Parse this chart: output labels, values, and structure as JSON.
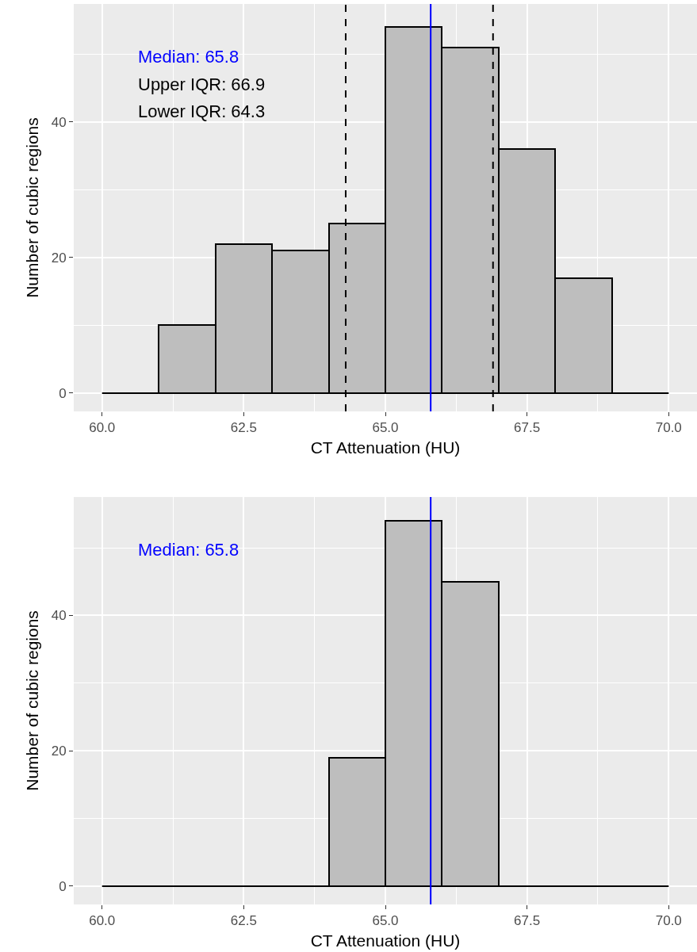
{
  "chart_data": [
    {
      "type": "histogram",
      "xlabel": "CT Attenuation (HU)",
      "ylabel": "Number of cubic regions",
      "bins": [
        60,
        61,
        62,
        63,
        64,
        65,
        66,
        67,
        68,
        69,
        70
      ],
      "values": [
        0,
        10,
        22,
        21,
        25,
        54,
        51,
        36,
        17,
        0
      ],
      "color": "#bebebe",
      "xlim": [
        59.5,
        70.5
      ],
      "ylim": [
        -2.7,
        57.4
      ],
      "xticks": [
        {
          "value": 60,
          "label": "60.0"
        },
        {
          "value": 62.5,
          "label": "62.5"
        },
        {
          "value": 65,
          "label": "65.0"
        },
        {
          "value": 67.5,
          "label": "67.5"
        },
        {
          "value": 70,
          "label": "70.0"
        }
      ],
      "yticks": [
        0,
        20,
        40
      ],
      "grid": true,
      "ref_lines": [
        {
          "axis": "x",
          "value": 65.8,
          "label": "Median: 65.8",
          "color": "#0000ff",
          "line_style": "solid"
        },
        {
          "axis": "x",
          "value": 66.9,
          "color": "#000000",
          "line_style": "dashed"
        },
        {
          "axis": "x",
          "value": 64.3,
          "color": "#000000",
          "line_style": "dashed"
        }
      ],
      "annotations": [
        "Upper IQR: 66.9",
        "Lower IQR: 64.3"
      ]
    },
    {
      "type": "histogram",
      "xlabel": "CT Attenuation (HU)",
      "ylabel": "Number of cubic regions",
      "bins": [
        60,
        61,
        62,
        63,
        64,
        65,
        66,
        67,
        68,
        69,
        70
      ],
      "values": [
        0,
        0,
        0,
        0,
        19,
        54,
        45,
        0,
        0,
        0
      ],
      "color": "#bebebe",
      "xlim": [
        59.5,
        70.5
      ],
      "ylim": [
        -2.7,
        57.5
      ],
      "xticks": [
        {
          "value": 60,
          "label": "60.0"
        },
        {
          "value": 62.5,
          "label": "62.5"
        },
        {
          "value": 65,
          "label": "65.0"
        },
        {
          "value": 67.5,
          "label": "67.5"
        },
        {
          "value": 70,
          "label": "70.0"
        }
      ],
      "yticks": [
        0,
        20,
        40
      ],
      "grid": true,
      "ref_lines": [
        {
          "axis": "x",
          "value": 65.8,
          "label": "Median: 65.8",
          "color": "#0000ff",
          "line_style": "solid"
        }
      ]
    }
  ]
}
